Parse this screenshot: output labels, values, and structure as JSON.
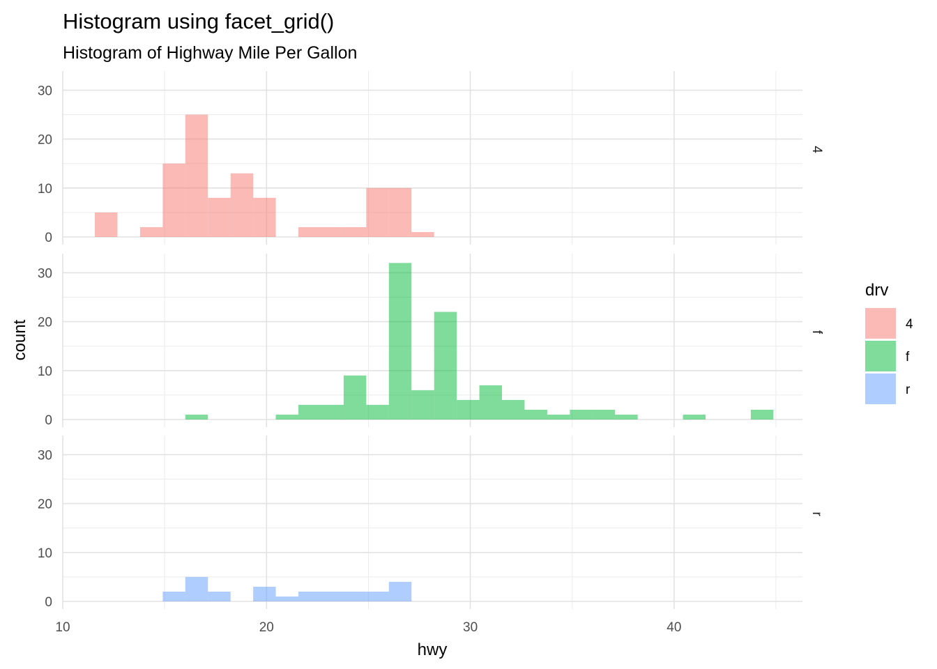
{
  "chart_data": {
    "type": "bar",
    "title": "Histogram using facet_grid()",
    "subtitle": "Histogram of Highway Mile Per Gallon",
    "xlabel": "hwy",
    "ylabel": "count",
    "xlim": [
      10,
      46.3
    ],
    "ylim": [
      0,
      33
    ],
    "x_ticks": [
      10,
      20,
      30,
      40
    ],
    "y_ticks": [
      0,
      10,
      20,
      30
    ],
    "bin_width": 1.11,
    "grid": true,
    "legend": {
      "title": "drv",
      "position": "right",
      "entries": [
        {
          "label": "4",
          "color": "#F8766D"
        },
        {
          "label": "f",
          "color": "#00BA38"
        },
        {
          "label": "r",
          "color": "#619CFF"
        }
      ]
    },
    "facets": [
      {
        "strip": "4",
        "color": "#F8766D",
        "bins": [
          {
            "x": 12.13,
            "count": 5
          },
          {
            "x": 14.35,
            "count": 2
          },
          {
            "x": 15.46,
            "count": 15
          },
          {
            "x": 16.57,
            "count": 25
          },
          {
            "x": 17.68,
            "count": 8
          },
          {
            "x": 18.79,
            "count": 13
          },
          {
            "x": 19.9,
            "count": 8
          },
          {
            "x": 22.12,
            "count": 2
          },
          {
            "x": 23.23,
            "count": 2
          },
          {
            "x": 24.34,
            "count": 2
          },
          {
            "x": 25.45,
            "count": 10
          },
          {
            "x": 26.56,
            "count": 10
          },
          {
            "x": 27.67,
            "count": 1
          }
        ]
      },
      {
        "strip": "f",
        "color": "#00BA38",
        "bins": [
          {
            "x": 16.57,
            "count": 1
          },
          {
            "x": 21.01,
            "count": 1
          },
          {
            "x": 22.12,
            "count": 3
          },
          {
            "x": 23.23,
            "count": 3
          },
          {
            "x": 24.34,
            "count": 9
          },
          {
            "x": 25.45,
            "count": 3
          },
          {
            "x": 26.56,
            "count": 32
          },
          {
            "x": 27.67,
            "count": 6
          },
          {
            "x": 28.78,
            "count": 22
          },
          {
            "x": 29.89,
            "count": 4
          },
          {
            "x": 31.0,
            "count": 7
          },
          {
            "x": 32.11,
            "count": 4
          },
          {
            "x": 33.22,
            "count": 2
          },
          {
            "x": 34.33,
            "count": 1
          },
          {
            "x": 35.44,
            "count": 2
          },
          {
            "x": 36.55,
            "count": 2
          },
          {
            "x": 37.66,
            "count": 1
          },
          {
            "x": 40.99,
            "count": 1
          },
          {
            "x": 44.32,
            "count": 2
          }
        ]
      },
      {
        "strip": "r",
        "color": "#619CFF",
        "bins": [
          {
            "x": 15.46,
            "count": 2
          },
          {
            "x": 16.57,
            "count": 5
          },
          {
            "x": 17.68,
            "count": 2
          },
          {
            "x": 19.9,
            "count": 3
          },
          {
            "x": 21.01,
            "count": 1
          },
          {
            "x": 22.12,
            "count": 2
          },
          {
            "x": 23.23,
            "count": 2
          },
          {
            "x": 24.34,
            "count": 2
          },
          {
            "x": 25.45,
            "count": 2
          },
          {
            "x": 26.56,
            "count": 4
          }
        ]
      }
    ]
  }
}
